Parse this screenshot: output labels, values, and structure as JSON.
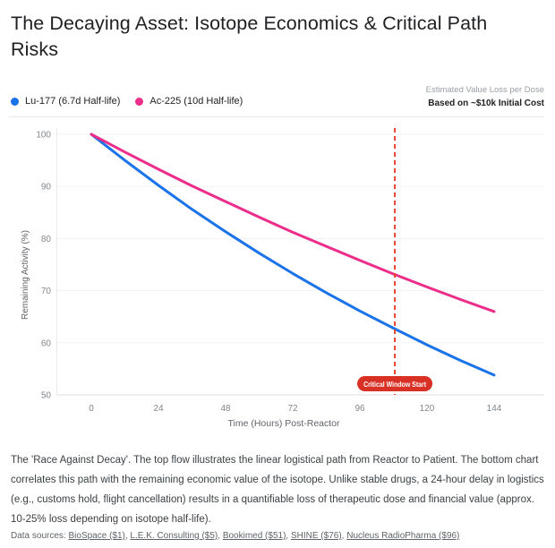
{
  "page": {
    "title": "The Decaying Asset: Isotope Economics & Critical Path Risks"
  },
  "header": {
    "legend": [
      {
        "name": "Lu-177 (6.7d Half-life)",
        "color": "#1a73e8"
      },
      {
        "name": "Ac-225 (10d Half-life)",
        "color": "#ec2d8a"
      }
    ],
    "note_line1": "Estimated Value Loss per Dose",
    "note_line2": "Based on ~$10k Initial Cost"
  },
  "chart_data": {
    "type": "line",
    "title": "",
    "xlabel": "Time (Hours) Post-Reactor",
    "ylabel": "Remaining Activity (%)",
    "xlim": [
      0,
      144
    ],
    "ylim": [
      50,
      100
    ],
    "xticks": [
      0,
      24,
      48,
      72,
      96,
      120,
      144
    ],
    "yticks": [
      50,
      60,
      70,
      80,
      90,
      100
    ],
    "grid": "horizontal",
    "legend_position": "top-left",
    "x": [
      0,
      12,
      24,
      36,
      48,
      60,
      72,
      84,
      96,
      108,
      120,
      132,
      144
    ],
    "series": [
      {
        "name": "Lu-177 (6.7d Half-life)",
        "color": "#1a73e8",
        "values": [
          100,
          95.0,
          90.2,
          85.6,
          81.3,
          77.2,
          73.3,
          69.6,
          66.1,
          62.8,
          59.6,
          56.6,
          53.8
        ]
      },
      {
        "name": "Ac-225 (10d Half-life)",
        "color": "#ec2d8a",
        "values": [
          100,
          96.6,
          93.3,
          90.1,
          87.1,
          84.1,
          81.2,
          78.5,
          75.8,
          73.2,
          70.7,
          68.3,
          66.0
        ]
      }
    ],
    "annotation": {
      "label": "Critical Window Start",
      "x_hours": 108.5,
      "line_color": "#e8432e",
      "badge_color": "#d93025",
      "badge_text_color": "#ffffff"
    },
    "colors": {
      "tick_label": "#80868b",
      "axis_title": "#5f6368",
      "gridline": "#f2f3f4",
      "bottom_axis": "#e2e2e2",
      "left_axis": "#e8eaed"
    }
  },
  "caption": "The 'Race Against Decay'. The top flow illustrates the linear logistical path from Reactor to Patient. The bottom chart correlates this path with the remaining economic value of the isotope. Unlike stable drugs, a 24-hour delay in logistics (e.g., customs hold, flight cancellation) results in a quantifiable loss of therapeutic dose and financial value (approx. 10-25% loss depending on isotope half-life).",
  "sources": {
    "prefix": "Data sources: ",
    "links": [
      "BioSpace ($1)",
      "L.E.K. Consulting ($5)",
      "Bookimed ($51)",
      "SHINE ($76)",
      "Nucleus RadioPharma ($96)"
    ]
  }
}
